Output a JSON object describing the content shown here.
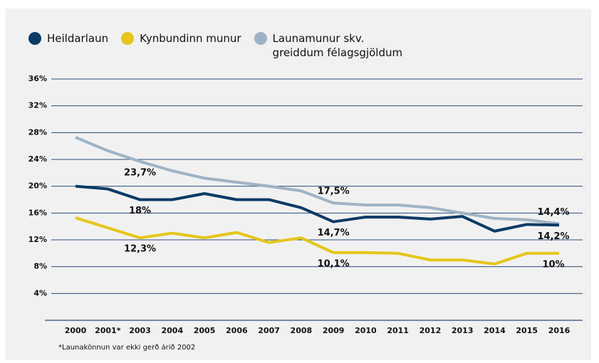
{
  "chart_data": {
    "type": "line",
    "categories": [
      "2000",
      "2001*",
      "2003",
      "2004",
      "2005",
      "2006",
      "2007",
      "2008",
      "2009",
      "2010",
      "2011",
      "2012",
      "2013",
      "2014",
      "2015",
      "2016"
    ],
    "series": [
      {
        "name": "Heildarlaun",
        "color": "#0b3a66",
        "values": [
          20.0,
          19.6,
          18.0,
          18.0,
          18.9,
          18.0,
          18.0,
          16.8,
          14.7,
          15.4,
          15.4,
          15.1,
          15.5,
          13.3,
          14.3,
          14.2
        ],
        "value_labels": [
          null,
          null,
          "18%",
          null,
          null,
          null,
          null,
          null,
          "14,7%",
          null,
          null,
          null,
          null,
          null,
          null,
          "14,2%"
        ]
      },
      {
        "name": "Kynbundinn munur",
        "color": "#e6c619",
        "values": [
          15.3,
          13.8,
          12.3,
          13.0,
          12.3,
          13.1,
          11.6,
          12.3,
          10.1,
          10.1,
          10.0,
          9.0,
          9.0,
          8.4,
          10.0,
          10.0
        ],
        "value_labels": [
          null,
          null,
          "12,3%",
          null,
          null,
          null,
          null,
          null,
          "10,1%",
          null,
          null,
          null,
          null,
          null,
          null,
          "10%"
        ]
      },
      {
        "name": "Launamunur skv. greiddum félagsgjöldum",
        "color": "#9fb3c4",
        "values": [
          27.3,
          25.3,
          23.7,
          22.3,
          21.2,
          20.6,
          20.0,
          19.3,
          17.5,
          17.2,
          17.2,
          16.8,
          16.0,
          15.2,
          15.0,
          14.4
        ],
        "value_labels": [
          null,
          null,
          "23,7%",
          null,
          null,
          null,
          null,
          null,
          "17,5%",
          null,
          null,
          null,
          null,
          null,
          null,
          "14,4%"
        ]
      }
    ],
    "ylim": [
      0,
      36
    ],
    "yticks": [
      {
        "value": 4,
        "label": "4%"
      },
      {
        "value": 8,
        "label": "8%"
      },
      {
        "value": 12,
        "label": "12%"
      },
      {
        "value": 16,
        "label": "16%"
      },
      {
        "value": 20,
        "label": "20%"
      },
      {
        "value": 24,
        "label": "24%"
      },
      {
        "value": 28,
        "label": "28%"
      },
      {
        "value": 32,
        "label": "32%"
      },
      {
        "value": 36,
        "label": "36%"
      }
    ],
    "grid": true,
    "note": "*Launakönnun var ekki gerð árið 2002"
  }
}
